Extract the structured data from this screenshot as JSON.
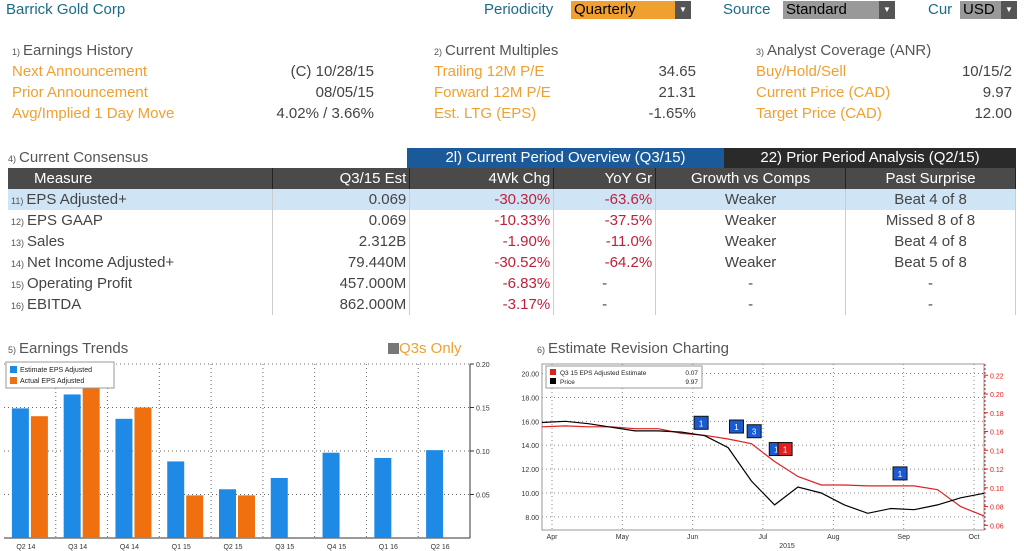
{
  "header": {
    "title": "Barrick Gold Corp",
    "periodicity_label": "Periodicity",
    "periodicity_value": "Quarterly",
    "source_label": "Source",
    "source_value": "Standard",
    "cur_label": "Cur",
    "cur_value": "USD"
  },
  "earnings_history": {
    "num": "1)",
    "title": "Earnings History",
    "rows": [
      {
        "label": "Next Announcement",
        "value": "(C)  10/28/15"
      },
      {
        "label": "Prior Announcement",
        "value": "08/05/15"
      },
      {
        "label": "Avg/Implied 1 Day Move",
        "value": "4.02% / 3.66%"
      }
    ]
  },
  "current_multiples": {
    "num": "2)",
    "title": "Current Multiples",
    "rows": [
      {
        "label": "Trailing 12M P/E",
        "value": "34.65"
      },
      {
        "label": "Forward 12M P/E",
        "value": "21.31"
      },
      {
        "label": "Est. LTG (EPS)",
        "value": "-1.65%"
      }
    ]
  },
  "analyst_coverage": {
    "num": "3)",
    "title": "Analyst Coverage (ANR)",
    "rows": [
      {
        "label": "Buy/Hold/Sell",
        "value": "10/15/2"
      },
      {
        "label": "Current Price (CAD)",
        "value": "9.97"
      },
      {
        "label": "Target Price (CAD)",
        "value": "12.00"
      }
    ]
  },
  "consensus": {
    "num": "4)",
    "title": "Current Consensus",
    "tab_current": "2l) Current Period Overview (Q3/15)",
    "tab_prior": "22) Prior Period Analysis (Q2/15)",
    "headers": [
      "Measure",
      "Q3/15 Est",
      "4Wk Chg",
      "YoY Gr",
      "Growth vs Comps",
      "Past Surprise"
    ],
    "rows": [
      {
        "num": "11)",
        "measure": "EPS Adjusted+",
        "est": "0.069",
        "chg": "-30.30%",
        "yoy": "-63.6%",
        "growth": "Weaker",
        "surprise": "Beat 4 of 8"
      },
      {
        "num": "12)",
        "measure": "EPS GAAP",
        "est": "0.069",
        "chg": "-10.33%",
        "yoy": "-37.5%",
        "growth": "Weaker",
        "surprise": "Missed 8 of 8"
      },
      {
        "num": "13)",
        "measure": "Sales",
        "est": "2.312B",
        "chg": "-1.90%",
        "yoy": "-11.0%",
        "growth": "Weaker",
        "surprise": "Beat 4 of 8"
      },
      {
        "num": "14)",
        "measure": "Net Income Adjusted+",
        "est": "79.440M",
        "chg": "-30.52%",
        "yoy": "-64.2%",
        "growth": "Weaker",
        "surprise": "Beat 5 of 8"
      },
      {
        "num": "15)",
        "measure": "Operating Profit",
        "est": "457.000M",
        "chg": "-6.83%",
        "yoy": "-",
        "growth": "-",
        "surprise": "-"
      },
      {
        "num": "16)",
        "measure": "EBITDA",
        "est": "862.000M",
        "chg": "-3.17%",
        "yoy": "-",
        "growth": "-",
        "surprise": "-"
      }
    ]
  },
  "earnings_trends": {
    "num": "5)",
    "title": "Earnings Trends",
    "toggle": "Q3s Only"
  },
  "estimate_revision": {
    "num": "6)",
    "title": "Estimate Revision Charting"
  },
  "chart_data": [
    {
      "type": "bar",
      "categories": [
        "Q2 14",
        "Q3 14",
        "Q4 14",
        "Q1 15",
        "Q2 15",
        "Q3 15",
        "Q4 15",
        "Q1 16",
        "Q2 16"
      ],
      "series": [
        {
          "name": "Estimate EPS Adjusted",
          "color": "#1e8ae6",
          "values": [
            0.149,
            0.165,
            0.137,
            0.088,
            0.056,
            0.069,
            0.098,
            0.092,
            0.101
          ]
        },
        {
          "name": "Actual EPS Adjusted",
          "color": "#f07010",
          "values": [
            0.14,
            0.172,
            0.15,
            0.049,
            0.049,
            null,
            null,
            null,
            null
          ]
        }
      ],
      "yticks": [
        "0.20",
        "0.15",
        "0.10",
        "0.05"
      ],
      "ylim": [
        0,
        0.2
      ],
      "legend": "top-left"
    },
    {
      "type": "line",
      "x_labels": [
        "Apr",
        "May",
        "Jun",
        "Jul",
        "Aug",
        "Sep",
        "Oct"
      ],
      "year_label": "2015",
      "left_ticks": [
        "20.00",
        "18.00",
        "16.00",
        "14.00",
        "12.00",
        "10.00",
        "8.00"
      ],
      "right_ticks": [
        "0.22",
        "0.20",
        "0.18",
        "0.16",
        "0.14",
        "0.12",
        "0.10",
        "0.08",
        "0.06"
      ],
      "left_ylim": [
        6.9,
        20.8
      ],
      "right_ylim": [
        0.055,
        0.232
      ],
      "series": [
        {
          "name": "Q3 15 EPS Adjusted Estimate",
          "value_label": "0.07",
          "color": "#e02020",
          "axis": "right",
          "values": [
            0.165,
            0.166,
            0.165,
            0.165,
            0.163,
            0.163,
            0.158,
            0.156,
            0.152,
            0.147,
            0.128,
            0.112,
            0.103,
            0.103,
            0.102,
            0.102,
            0.102,
            0.098,
            0.08,
            0.07
          ]
        },
        {
          "name": "Price",
          "value_label": "9.97",
          "color": "#000000",
          "axis": "left",
          "values": [
            15.9,
            16.0,
            15.8,
            15.5,
            15.2,
            15.2,
            15.1,
            14.8,
            13.8,
            11.0,
            9.0,
            10.5,
            10.0,
            9.0,
            8.3,
            8.7,
            8.6,
            9.0,
            9.6,
            9.97
          ]
        }
      ],
      "markers": [
        {
          "label": "1",
          "color": "#1a5ad0"
        },
        {
          "label": "1",
          "color": "#1a5ad0"
        },
        {
          "label": "3",
          "color": "#1a5ad0"
        },
        {
          "label": "1",
          "color": "#1a5ad0"
        },
        {
          "label": "1",
          "color": "#e02020"
        },
        {
          "label": "1",
          "color": "#1a5ad0"
        }
      ],
      "legend": "top-left"
    }
  ]
}
